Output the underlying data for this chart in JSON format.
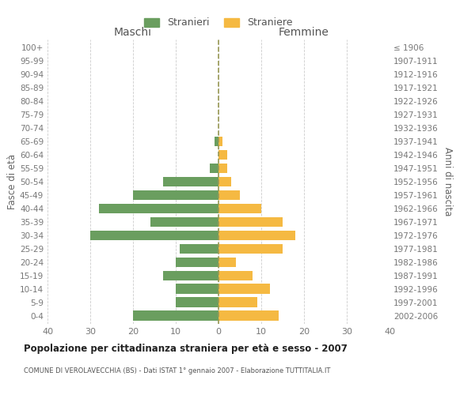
{
  "age_groups": [
    "0-4",
    "5-9",
    "10-14",
    "15-19",
    "20-24",
    "25-29",
    "30-34",
    "35-39",
    "40-44",
    "45-49",
    "50-54",
    "55-59",
    "60-64",
    "65-69",
    "70-74",
    "75-79",
    "80-84",
    "85-89",
    "90-94",
    "95-99",
    "100+"
  ],
  "birth_years": [
    "2002-2006",
    "1997-2001",
    "1992-1996",
    "1987-1991",
    "1982-1986",
    "1977-1981",
    "1972-1976",
    "1967-1971",
    "1962-1966",
    "1957-1961",
    "1952-1956",
    "1947-1951",
    "1942-1946",
    "1937-1941",
    "1932-1936",
    "1927-1931",
    "1922-1926",
    "1917-1921",
    "1912-1916",
    "1907-1911",
    "≤ 1906"
  ],
  "maschi": [
    20,
    10,
    10,
    13,
    10,
    9,
    30,
    16,
    28,
    20,
    13,
    2,
    0,
    1,
    0,
    0,
    0,
    0,
    0,
    0,
    0
  ],
  "femmine": [
    14,
    9,
    12,
    8,
    4,
    15,
    18,
    15,
    10,
    5,
    3,
    2,
    2,
    1,
    0,
    0,
    0,
    0,
    0,
    0,
    0
  ],
  "maschi_color": "#6a9e5f",
  "femmine_color": "#f5b942",
  "title": "Popolazione per cittadinanza straniera per età e sesso - 2007",
  "subtitle": "COMUNE DI VEROLAVECCHIA (BS) - Dati ISTAT 1° gennaio 2007 - Elaborazione TUTTITALIA.IT",
  "xlabel_left": "Maschi",
  "xlabel_right": "Femmine",
  "ylabel_left": "Fasce di età",
  "ylabel_right": "Anni di nascita",
  "legend_maschi": "Stranieri",
  "legend_femmine": "Straniere",
  "xlim": 40,
  "bg_color": "#ffffff",
  "grid_color": "#cccccc",
  "bar_height": 0.75,
  "dashed_line_color": "#999955"
}
